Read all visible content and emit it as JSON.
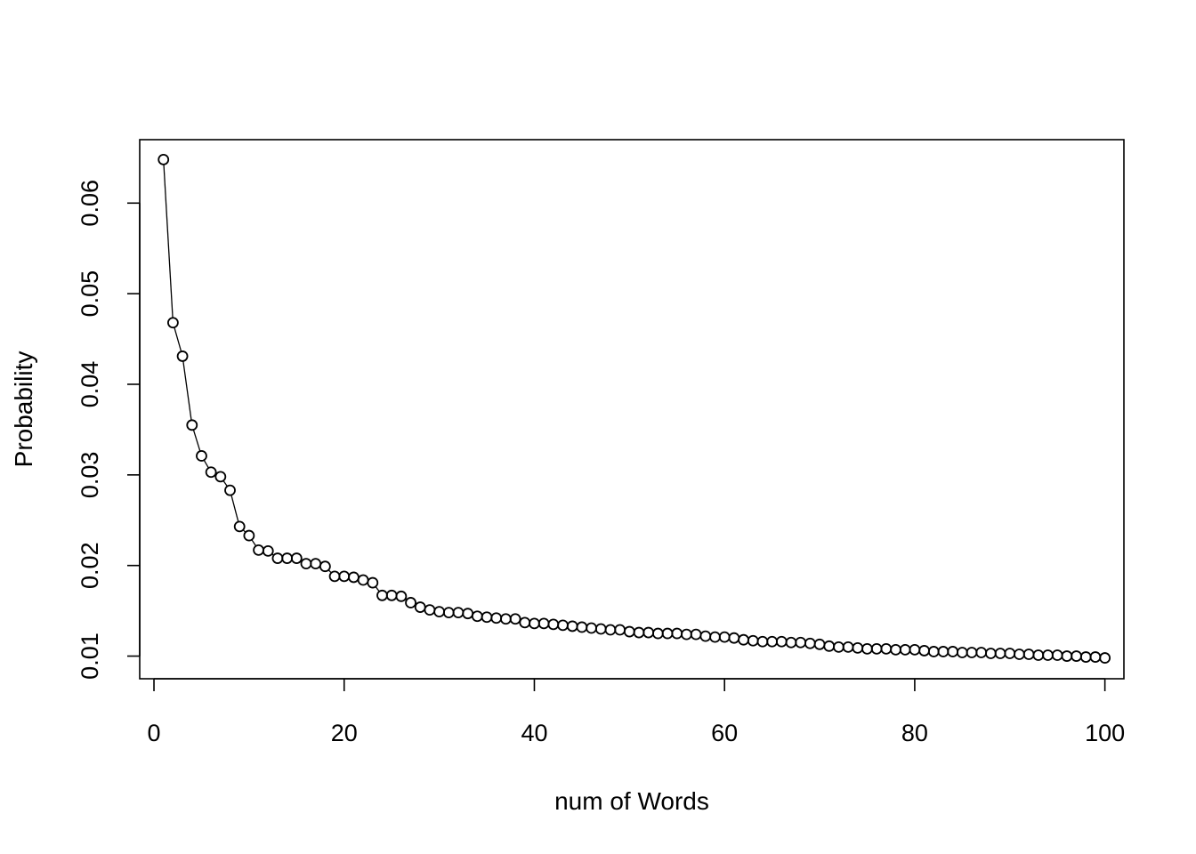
{
  "chart_data": {
    "type": "line",
    "title": "",
    "xlabel": "num of Words",
    "ylabel": "Probability",
    "xlim": [
      -1.5,
      102
    ],
    "ylim": [
      0.0075,
      0.067
    ],
    "xticks": [
      0,
      20,
      40,
      60,
      80,
      100
    ],
    "xtick_labels": [
      "0",
      "20",
      "40",
      "60",
      "80",
      "100"
    ],
    "yticks": [
      0.01,
      0.02,
      0.03,
      0.04,
      0.05,
      0.06
    ],
    "ytick_labels": [
      "0.01",
      "0.02",
      "0.03",
      "0.04",
      "0.05",
      "0.06"
    ],
    "grid": false,
    "marker": "open-circle",
    "x": [
      1,
      2,
      3,
      4,
      5,
      6,
      7,
      8,
      9,
      10,
      11,
      12,
      13,
      14,
      15,
      16,
      17,
      18,
      19,
      20,
      21,
      22,
      23,
      24,
      25,
      26,
      27,
      28,
      29,
      30,
      31,
      32,
      33,
      34,
      35,
      36,
      37,
      38,
      39,
      40,
      41,
      42,
      43,
      44,
      45,
      46,
      47,
      48,
      49,
      50,
      51,
      52,
      53,
      54,
      55,
      56,
      57,
      58,
      59,
      60,
      61,
      62,
      63,
      64,
      65,
      66,
      67,
      68,
      69,
      70,
      71,
      72,
      73,
      74,
      75,
      76,
      77,
      78,
      79,
      80,
      81,
      82,
      83,
      84,
      85,
      86,
      87,
      88,
      89,
      90,
      91,
      92,
      93,
      94,
      95,
      96,
      97,
      98,
      99,
      100
    ],
    "y": [
      0.0648,
      0.0468,
      0.0431,
      0.0355,
      0.0321,
      0.0303,
      0.0298,
      0.0283,
      0.0243,
      0.0233,
      0.0217,
      0.0216,
      0.0208,
      0.0208,
      0.0208,
      0.0202,
      0.0202,
      0.0199,
      0.0188,
      0.0188,
      0.0187,
      0.0184,
      0.0181,
      0.0167,
      0.0167,
      0.0166,
      0.0159,
      0.0154,
      0.0151,
      0.0149,
      0.0148,
      0.0148,
      0.0147,
      0.0144,
      0.0143,
      0.0142,
      0.0141,
      0.0141,
      0.0137,
      0.0136,
      0.0136,
      0.0135,
      0.0134,
      0.0133,
      0.0132,
      0.0131,
      0.013,
      0.0129,
      0.0129,
      0.0127,
      0.0126,
      0.0126,
      0.0125,
      0.0125,
      0.0125,
      0.0124,
      0.0124,
      0.0122,
      0.0121,
      0.0121,
      0.012,
      0.0118,
      0.0117,
      0.0116,
      0.0116,
      0.0116,
      0.0115,
      0.0115,
      0.0114,
      0.0113,
      0.0111,
      0.011,
      0.011,
      0.0109,
      0.0108,
      0.0108,
      0.0108,
      0.0107,
      0.0107,
      0.0107,
      0.0106,
      0.0105,
      0.0105,
      0.0105,
      0.0104,
      0.0104,
      0.0104,
      0.0103,
      0.0103,
      0.0103,
      0.0102,
      0.0102,
      0.0101,
      0.0101,
      0.0101,
      0.01,
      0.01,
      0.0099,
      0.0099,
      0.0098
    ]
  }
}
